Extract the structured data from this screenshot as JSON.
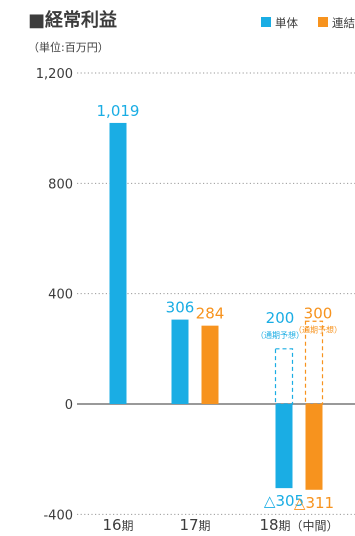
{
  "chart_data": {
    "type": "bar",
    "title": "■経常利益",
    "unit_label": "（単位:百万円）",
    "colors": {
      "tanntai": "#1AADE4",
      "renketsu": "#F7931E",
      "axis": "#999999",
      "grid": "#9a9a9a",
      "text": "#3c3c3c"
    },
    "legend": {
      "placement": "top-right",
      "items": [
        {
          "key": "tanntai",
          "label": "単体"
        },
        {
          "key": "renketsu",
          "label": "連結"
        }
      ]
    },
    "y_axis": {
      "ylim": [
        -400,
        1200
      ],
      "ticks": [
        {
          "value": 1200,
          "label": "1,200"
        },
        {
          "value": 800,
          "label": "800"
        },
        {
          "value": 400,
          "label": "400"
        },
        {
          "value": 0,
          "label": "0"
        },
        {
          "value": -400,
          "label": "-400"
        }
      ],
      "grid": "dotted"
    },
    "categories": [
      {
        "num": "16",
        "suffix": "期",
        "note": ""
      },
      {
        "num": "17",
        "suffix": "期",
        "note": ""
      },
      {
        "num": "18",
        "suffix": "期",
        "note": "（中間）"
      }
    ],
    "series": [
      {
        "name": "単体",
        "key": "tanntai",
        "values": [
          1019,
          306,
          -305
        ],
        "labels": [
          "1,019",
          "306",
          "△305"
        ]
      },
      {
        "name": "連結",
        "key": "renketsu",
        "values": [
          null,
          284,
          -311
        ],
        "labels": [
          "",
          "284",
          "△311"
        ]
      }
    ],
    "forecasts": [
      {
        "series": "単体",
        "category": "18",
        "value": 200,
        "label": "200",
        "note": "（通期予想）"
      },
      {
        "series": "連結",
        "category": "18",
        "value": 300,
        "label": "300",
        "note": "（通期予想）"
      }
    ]
  }
}
